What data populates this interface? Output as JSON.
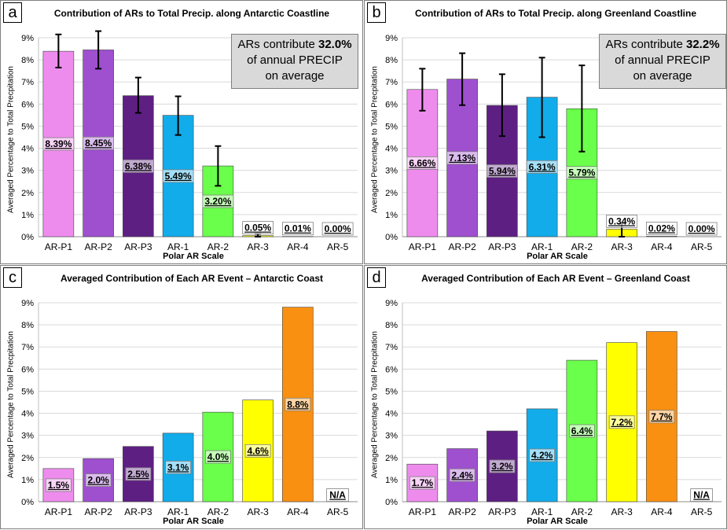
{
  "chart_data": [
    {
      "panel": "a",
      "type": "bar",
      "title": "Contribution of ARs to Total Precip. along Antarctic Coastline",
      "xlabel": "Polar AR Scale",
      "ylabel": "Averaged Percentage to Total Precpitation",
      "ylim": [
        0,
        9
      ],
      "yticks": [
        "0%",
        "1%",
        "2%",
        "3%",
        "4%",
        "5%",
        "6%",
        "7%",
        "8%",
        "9%"
      ],
      "categories": [
        "AR-P1",
        "AR-P2",
        "AR-P3",
        "AR-1",
        "AR-2",
        "AR-3",
        "AR-4",
        "AR-5"
      ],
      "values": [
        8.39,
        8.45,
        6.38,
        5.49,
        3.2,
        0.05,
        0.01,
        0.0
      ],
      "data_labels": [
        "8.39%",
        "8.45%",
        "6.38%",
        "5.49%",
        "3.20%",
        "0.05%",
        "0.01%",
        "0.00%"
      ],
      "error_bars": [
        [
          7.65,
          9.15
        ],
        [
          7.6,
          9.3
        ],
        [
          5.6,
          7.2
        ],
        [
          4.6,
          6.35
        ],
        [
          2.3,
          4.1
        ],
        [
          0.0,
          0.13
        ],
        null,
        null
      ],
      "colors": [
        "#ee8ced",
        "#9e50cf",
        "#5e1f83",
        "#12acea",
        "#6aff4a",
        "#ffff00",
        "#f99011",
        "#ffffff"
      ],
      "grid": true,
      "annotation": {
        "pre": "ARs contribute ",
        "value": "32.0%",
        "line2": "of annual PRECIP",
        "line3": "on average"
      }
    },
    {
      "panel": "b",
      "type": "bar",
      "title": "Contribution of ARs to Total Precip. along Greenland Coastline",
      "xlabel": "Polar AR Scale",
      "ylabel": "Averaged Percentage to Total Precpitation",
      "ylim": [
        0,
        9
      ],
      "yticks": [
        "0%",
        "1%",
        "2%",
        "3%",
        "4%",
        "5%",
        "6%",
        "7%",
        "8%",
        "9%"
      ],
      "categories": [
        "AR-P1",
        "AR-P2",
        "AR-P3",
        "AR-1",
        "AR-2",
        "AR-3",
        "AR-4",
        "AR-5"
      ],
      "values": [
        6.66,
        7.13,
        5.94,
        6.31,
        5.79,
        0.34,
        0.02,
        0.0
      ],
      "data_labels": [
        "6.66%",
        "7.13%",
        "5.94%",
        "6.31%",
        "5.79%",
        "0.34%",
        "0.02%",
        "0.00%"
      ],
      "error_bars": [
        [
          5.7,
          7.6
        ],
        [
          5.95,
          8.3
        ],
        [
          4.55,
          7.35
        ],
        [
          4.5,
          8.1
        ],
        [
          3.85,
          7.75
        ],
        [
          0.0,
          0.6
        ],
        null,
        null
      ],
      "colors": [
        "#ee8ced",
        "#9e50cf",
        "#5e1f83",
        "#12acea",
        "#6aff4a",
        "#ffff00",
        "#f99011",
        "#ffffff"
      ],
      "grid": true,
      "annotation": {
        "pre": "ARs contribute ",
        "value": "32.2%",
        "line2": "of annual PRECIP",
        "line3": "on average"
      }
    },
    {
      "panel": "c",
      "type": "bar",
      "title": "Averaged Contribution of Each AR Event – Antarctic Coast",
      "xlabel": "Polar AR Scale",
      "ylabel": "Averaged Percentage to Total Precpitation",
      "ylim": [
        0,
        9
      ],
      "yticks": [
        "0%",
        "1%",
        "2%",
        "3%",
        "4%",
        "5%",
        "6%",
        "7%",
        "8%",
        "9%"
      ],
      "categories": [
        "AR-P1",
        "AR-P2",
        "AR-P3",
        "AR-1",
        "AR-2",
        "AR-3",
        "AR-4",
        "AR-5"
      ],
      "values": [
        1.5,
        1.95,
        2.5,
        3.1,
        4.05,
        4.6,
        8.8,
        null
      ],
      "data_labels": [
        "1.5%",
        "2.0%",
        "2.5%",
        "3.1%",
        "4.0%",
        "4.6%",
        "8.8%",
        "N/A"
      ],
      "colors": [
        "#ee8ced",
        "#9e50cf",
        "#5e1f83",
        "#12acea",
        "#6aff4a",
        "#ffff00",
        "#f99011",
        "#ffffff"
      ],
      "grid": true
    },
    {
      "panel": "d",
      "type": "bar",
      "title": "Averaged Contribution of Each AR Event – Greenland Coast",
      "xlabel": "Polar AR Scale",
      "ylabel": "Averaged Percentage to Total Precpitation",
      "ylim": [
        0,
        9
      ],
      "yticks": [
        "0%",
        "1%",
        "2%",
        "3%",
        "4%",
        "5%",
        "6%",
        "7%",
        "8%",
        "9%"
      ],
      "categories": [
        "AR-P1",
        "AR-P2",
        "AR-P3",
        "AR-1",
        "AR-2",
        "AR-3",
        "AR-4",
        "AR-5"
      ],
      "values": [
        1.7,
        2.4,
        3.2,
        4.2,
        6.4,
        7.2,
        7.7,
        null
      ],
      "data_labels": [
        "1.7%",
        "2.4%",
        "3.2%",
        "4.2%",
        "6.4%",
        "7.2%",
        "7.7%",
        "N/A"
      ],
      "colors": [
        "#ee8ced",
        "#9e50cf",
        "#5e1f83",
        "#12acea",
        "#6aff4a",
        "#ffff00",
        "#f99011",
        "#ffffff"
      ],
      "grid": true
    }
  ]
}
